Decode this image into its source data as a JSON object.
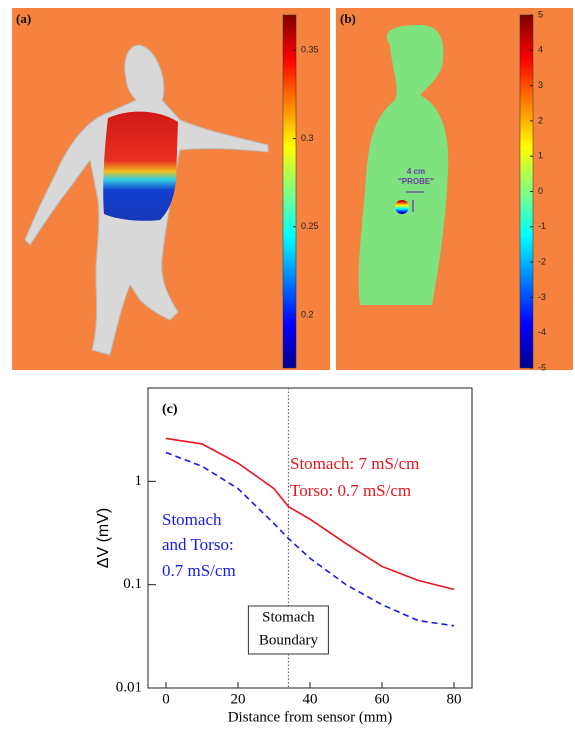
{
  "chart_data": [
    {
      "type": "colorbar-image",
      "label": "(a)",
      "clim": [
        0.17,
        0.37
      ],
      "colormap": "jet",
      "background": "#f5823f",
      "yticks": [
        0.2,
        0.25,
        0.3,
        0.35
      ]
    },
    {
      "type": "colorbar-image",
      "label": "(b)",
      "clim": [
        -5,
        5
      ],
      "colormap": "jet",
      "background": "#f5823f",
      "yticks": [
        -5,
        -4,
        -3,
        -2,
        -1,
        0,
        1,
        2,
        3,
        4,
        5
      ],
      "annotations": [
        {
          "text": "4 cm",
          "color": "#6a3fa0"
        },
        {
          "text": "\"PROBE\"",
          "color": "#6a3fa0"
        }
      ]
    },
    {
      "type": "line",
      "label": "(c)",
      "xlabel": "Distance from sensor (mm)",
      "ylabel": "ΔV (mV)",
      "x": [
        0,
        10,
        20,
        30,
        34,
        40,
        50,
        60,
        70,
        80
      ],
      "series": [
        {
          "color": "#e8141e",
          "dash": false,
          "values": [
            2.6,
            2.3,
            1.5,
            0.85,
            0.57,
            0.43,
            0.25,
            0.15,
            0.11,
            0.09
          ]
        },
        {
          "color": "#1a1ae6",
          "dash": true,
          "values": [
            1.9,
            1.4,
            0.85,
            0.39,
            0.28,
            0.18,
            0.1,
            0.064,
            0.045,
            0.04
          ]
        }
      ],
      "xlim": [
        -5,
        85
      ],
      "xticks": [
        0,
        20,
        40,
        60,
        80
      ],
      "ylim": [
        0.01,
        8
      ],
      "yticks": [
        0.01,
        0.1,
        1
      ],
      "log_y": true,
      "vline": 34,
      "vline_label": [
        "Stomach",
        "Boundary"
      ],
      "annotations": [
        {
          "text": "Stomach: 7 mS/cm",
          "color": "#e8141e"
        },
        {
          "text": "Torso: 0.7 mS/cm",
          "color": "#e8141e"
        },
        {
          "text": "Stomach",
          "color": "#1a1ae6"
        },
        {
          "text": "and Torso:",
          "color": "#1a1ae6"
        },
        {
          "text": "0.7 mS/cm",
          "color": "#1a1ae6"
        }
      ]
    }
  ]
}
